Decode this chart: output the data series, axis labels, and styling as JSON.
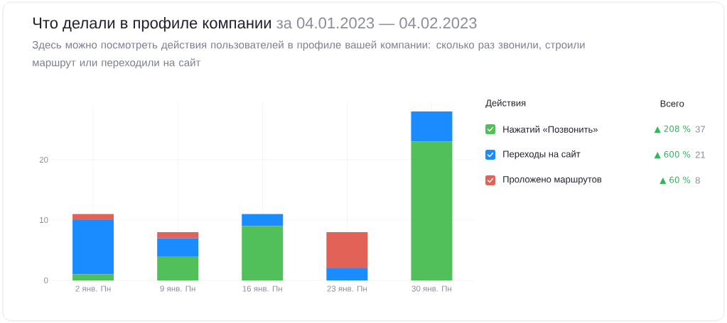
{
  "chart_data": {
    "type": "bar",
    "stacked": true,
    "title": "Что делали в профиле компании",
    "subtitle": "Здесь можно посмотреть действия пользователей в профиле вашей компании: сколько раз звонили, строили маршрут или переходили на сайт",
    "annotations": [
      "за 04.01.2023 — 04.02.2023",
      "Всего",
      "▲ 208 %",
      "37",
      "▲ 600 %",
      "21",
      "▲ 60 %",
      "8"
    ],
    "legend_title": "Действия",
    "categories": [
      "2 янв. Пн",
      "9 янв. Пн",
      "16 янв. Пн",
      "23 янв. Пн",
      "30 янв. Пн"
    ],
    "series": [
      {
        "name": "Нажатий «Позвонить»",
        "color": "#52c05a",
        "values": [
          1,
          4,
          9,
          0,
          23
        ]
      },
      {
        "name": "Переходы на сайт",
        "color": "#1a8cff",
        "values": [
          9,
          3,
          2,
          2,
          5
        ]
      },
      {
        "name": "Проложено маршрутов",
        "color": "#e26257",
        "values": [
          1,
          1,
          0,
          6,
          0
        ]
      }
    ],
    "ylim": [
      0,
      29.5
    ],
    "yticks": [
      0,
      10,
      20
    ],
    "grid": true,
    "legend": "right"
  }
}
